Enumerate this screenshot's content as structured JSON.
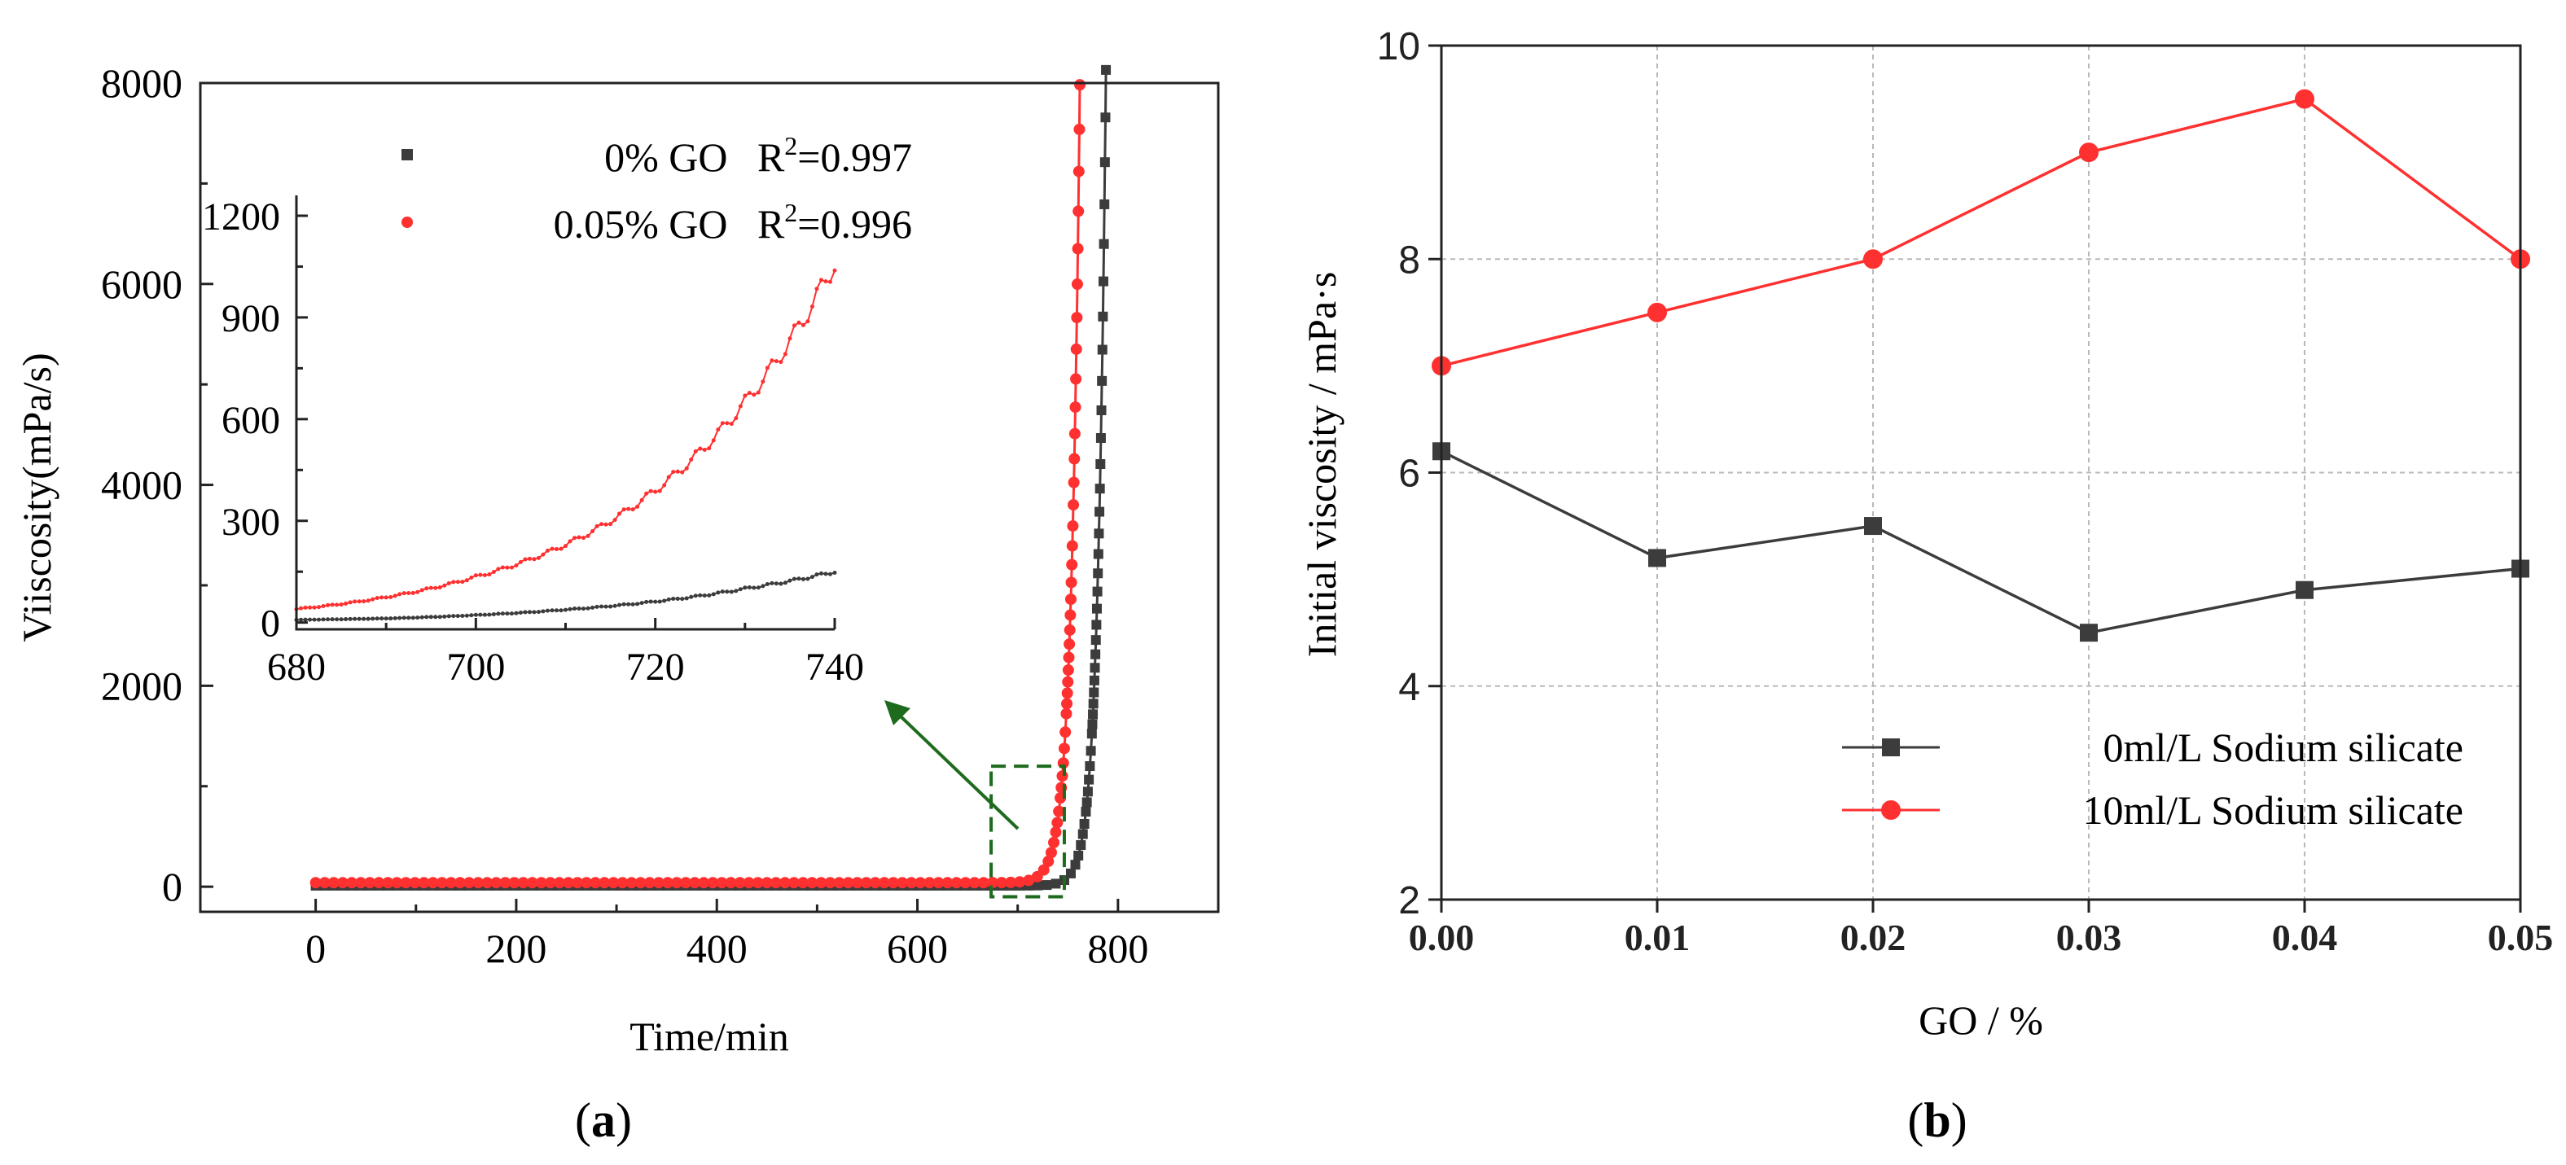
{
  "colors": {
    "black_series": "#3c3c3c",
    "red_series": "#ff3030",
    "grid": "#b9b9b9",
    "arrow": "#1e6b1e",
    "axis": "#222222"
  },
  "panel_a": {
    "caption": "(a)",
    "caption_parts": {
      "open": "(",
      "letter": "a",
      "close": ")"
    }
  },
  "panel_b": {
    "caption": "(b)",
    "caption_parts": {
      "open": "(",
      "letter": "b",
      "close": ")"
    }
  },
  "chart_data": [
    {
      "id": "a-main",
      "type": "scatter",
      "title": "",
      "xlabel": "Time/min",
      "ylabel": "Viiscosity(mPa/s)",
      "xlim": [
        -115,
        900
      ],
      "ylim": [
        -250,
        8000
      ],
      "xticks": [
        0,
        200,
        400,
        600,
        800
      ],
      "xtick_labels": [
        "0",
        "200",
        "400",
        "600",
        "800"
      ],
      "yticks": [
        0,
        2000,
        4000,
        6000,
        8000
      ],
      "ytick_labels": [
        "0",
        "2000",
        "4000",
        "6000",
        "8000"
      ],
      "legend": {
        "position": "top-center",
        "entries": [
          {
            "label": "0% GO",
            "r2_prefix": "R",
            "r2_sup": "2",
            "r2_value": "=0.997"
          },
          {
            "label": "0.05% GO",
            "r2_prefix": "R",
            "r2_sup": "2",
            "r2_value": "=0.996"
          }
        ]
      },
      "series": [
        {
          "name": "0% GO",
          "marker": "square",
          "x_start": 0,
          "x_end": 803,
          "y_start": 10,
          "growth_rate": 0.12,
          "onset": 708,
          "scale": 0.55
        },
        {
          "name": "0.05% GO",
          "marker": "circle",
          "x_start": 0,
          "x_end": 780,
          "y_start": 40,
          "growth_rate": 0.115,
          "onset": 688,
          "scale": 1.6
        }
      ],
      "zoom_box": {
        "x_range": [
          680,
          740
        ],
        "y_range": [
          -100,
          1200
        ]
      }
    },
    {
      "id": "a-inset",
      "type": "line",
      "xlim": [
        680,
        740
      ],
      "ylim": [
        -20,
        1260
      ],
      "xticks": [
        680,
        700,
        720,
        740
      ],
      "xtick_labels": [
        "680",
        "700",
        "720",
        "740"
      ],
      "yticks": [
        0,
        300,
        600,
        900,
        1200
      ],
      "ytick_labels": [
        "0",
        "300",
        "600",
        "900",
        "1200"
      ],
      "series": [
        {
          "name": "0% GO",
          "x": [
            680,
            690,
            700,
            710,
            720,
            730,
            740
          ],
          "y": [
            8,
            12,
            22,
            38,
            62,
            100,
            150
          ]
        },
        {
          "name": "0.05% GO",
          "x": [
            680,
            690,
            700,
            710,
            720,
            730,
            740
          ],
          "y": [
            40,
            75,
            135,
            230,
            390,
            650,
            1060
          ]
        }
      ]
    },
    {
      "id": "b",
      "type": "line",
      "title": "",
      "xlabel": "GO / %",
      "ylabel": "Initial viscosity / mPa·s",
      "xlim": [
        0,
        0.05
      ],
      "ylim": [
        2,
        10
      ],
      "grid": true,
      "xticks": [
        0,
        0.01,
        0.02,
        0.03,
        0.04,
        0.05
      ],
      "xtick_labels": [
        "0.00",
        "0.01",
        "0.02",
        "0.03",
        "0.04",
        "0.05"
      ],
      "yticks": [
        2,
        4,
        6,
        8,
        10
      ],
      "ytick_labels": [
        "2",
        "4",
        "6",
        "8",
        "10"
      ],
      "legend": {
        "position": "bottom-right"
      },
      "categories": [
        0,
        0.01,
        0.02,
        0.03,
        0.04,
        0.05
      ],
      "series": [
        {
          "name": "0ml/L Sodium silicate",
          "marker": "square",
          "values": [
            6.2,
            5.2,
            5.5,
            4.5,
            4.9,
            5.1
          ]
        },
        {
          "name": "10ml/L Sodium silicate",
          "marker": "circle",
          "values": [
            7.0,
            7.5,
            8.0,
            9.0,
            9.5,
            8.0
          ]
        }
      ]
    }
  ]
}
